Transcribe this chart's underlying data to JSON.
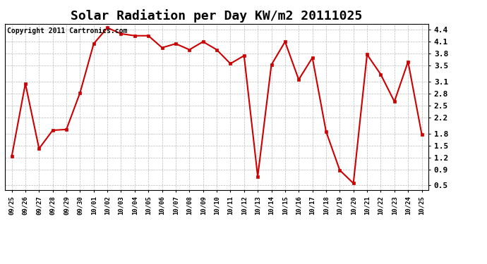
{
  "title": "Solar Radiation per Day KW/m2 20111025",
  "copyright_text": "Copyright 2011 Cartronics.com",
  "labels": [
    "09/25",
    "09/26",
    "09/27",
    "09/28",
    "09/29",
    "09/30",
    "10/01",
    "10/02",
    "10/03",
    "10/04",
    "10/05",
    "10/06",
    "10/07",
    "10/08",
    "10/09",
    "10/10",
    "10/11",
    "10/12",
    "10/13",
    "10/14",
    "10/15",
    "10/16",
    "10/17",
    "10/18",
    "10/19",
    "10/20",
    "10/21",
    "10/22",
    "10/23",
    "10/24",
    "10/25"
  ],
  "values": [
    1.22,
    3.05,
    1.42,
    1.88,
    1.9,
    2.82,
    4.05,
    4.45,
    4.3,
    4.25,
    4.25,
    3.95,
    4.05,
    3.9,
    4.1,
    3.9,
    3.55,
    3.75,
    0.72,
    3.52,
    4.1,
    3.15,
    3.7,
    1.85,
    0.88,
    0.55,
    3.78,
    3.28,
    2.6,
    3.6,
    1.78
  ],
  "line_color": "#cc0000",
  "marker_color": "#cc0000",
  "bg_color": "#ffffff",
  "grid_color": "#bbbbbb",
  "ylim": [
    0.38,
    4.55
  ],
  "yticks": [
    0.5,
    0.9,
    1.2,
    1.5,
    1.8,
    2.2,
    2.5,
    2.8,
    3.1,
    3.5,
    3.8,
    4.1,
    4.4
  ],
  "title_fontsize": 13,
  "copyright_fontsize": 7
}
